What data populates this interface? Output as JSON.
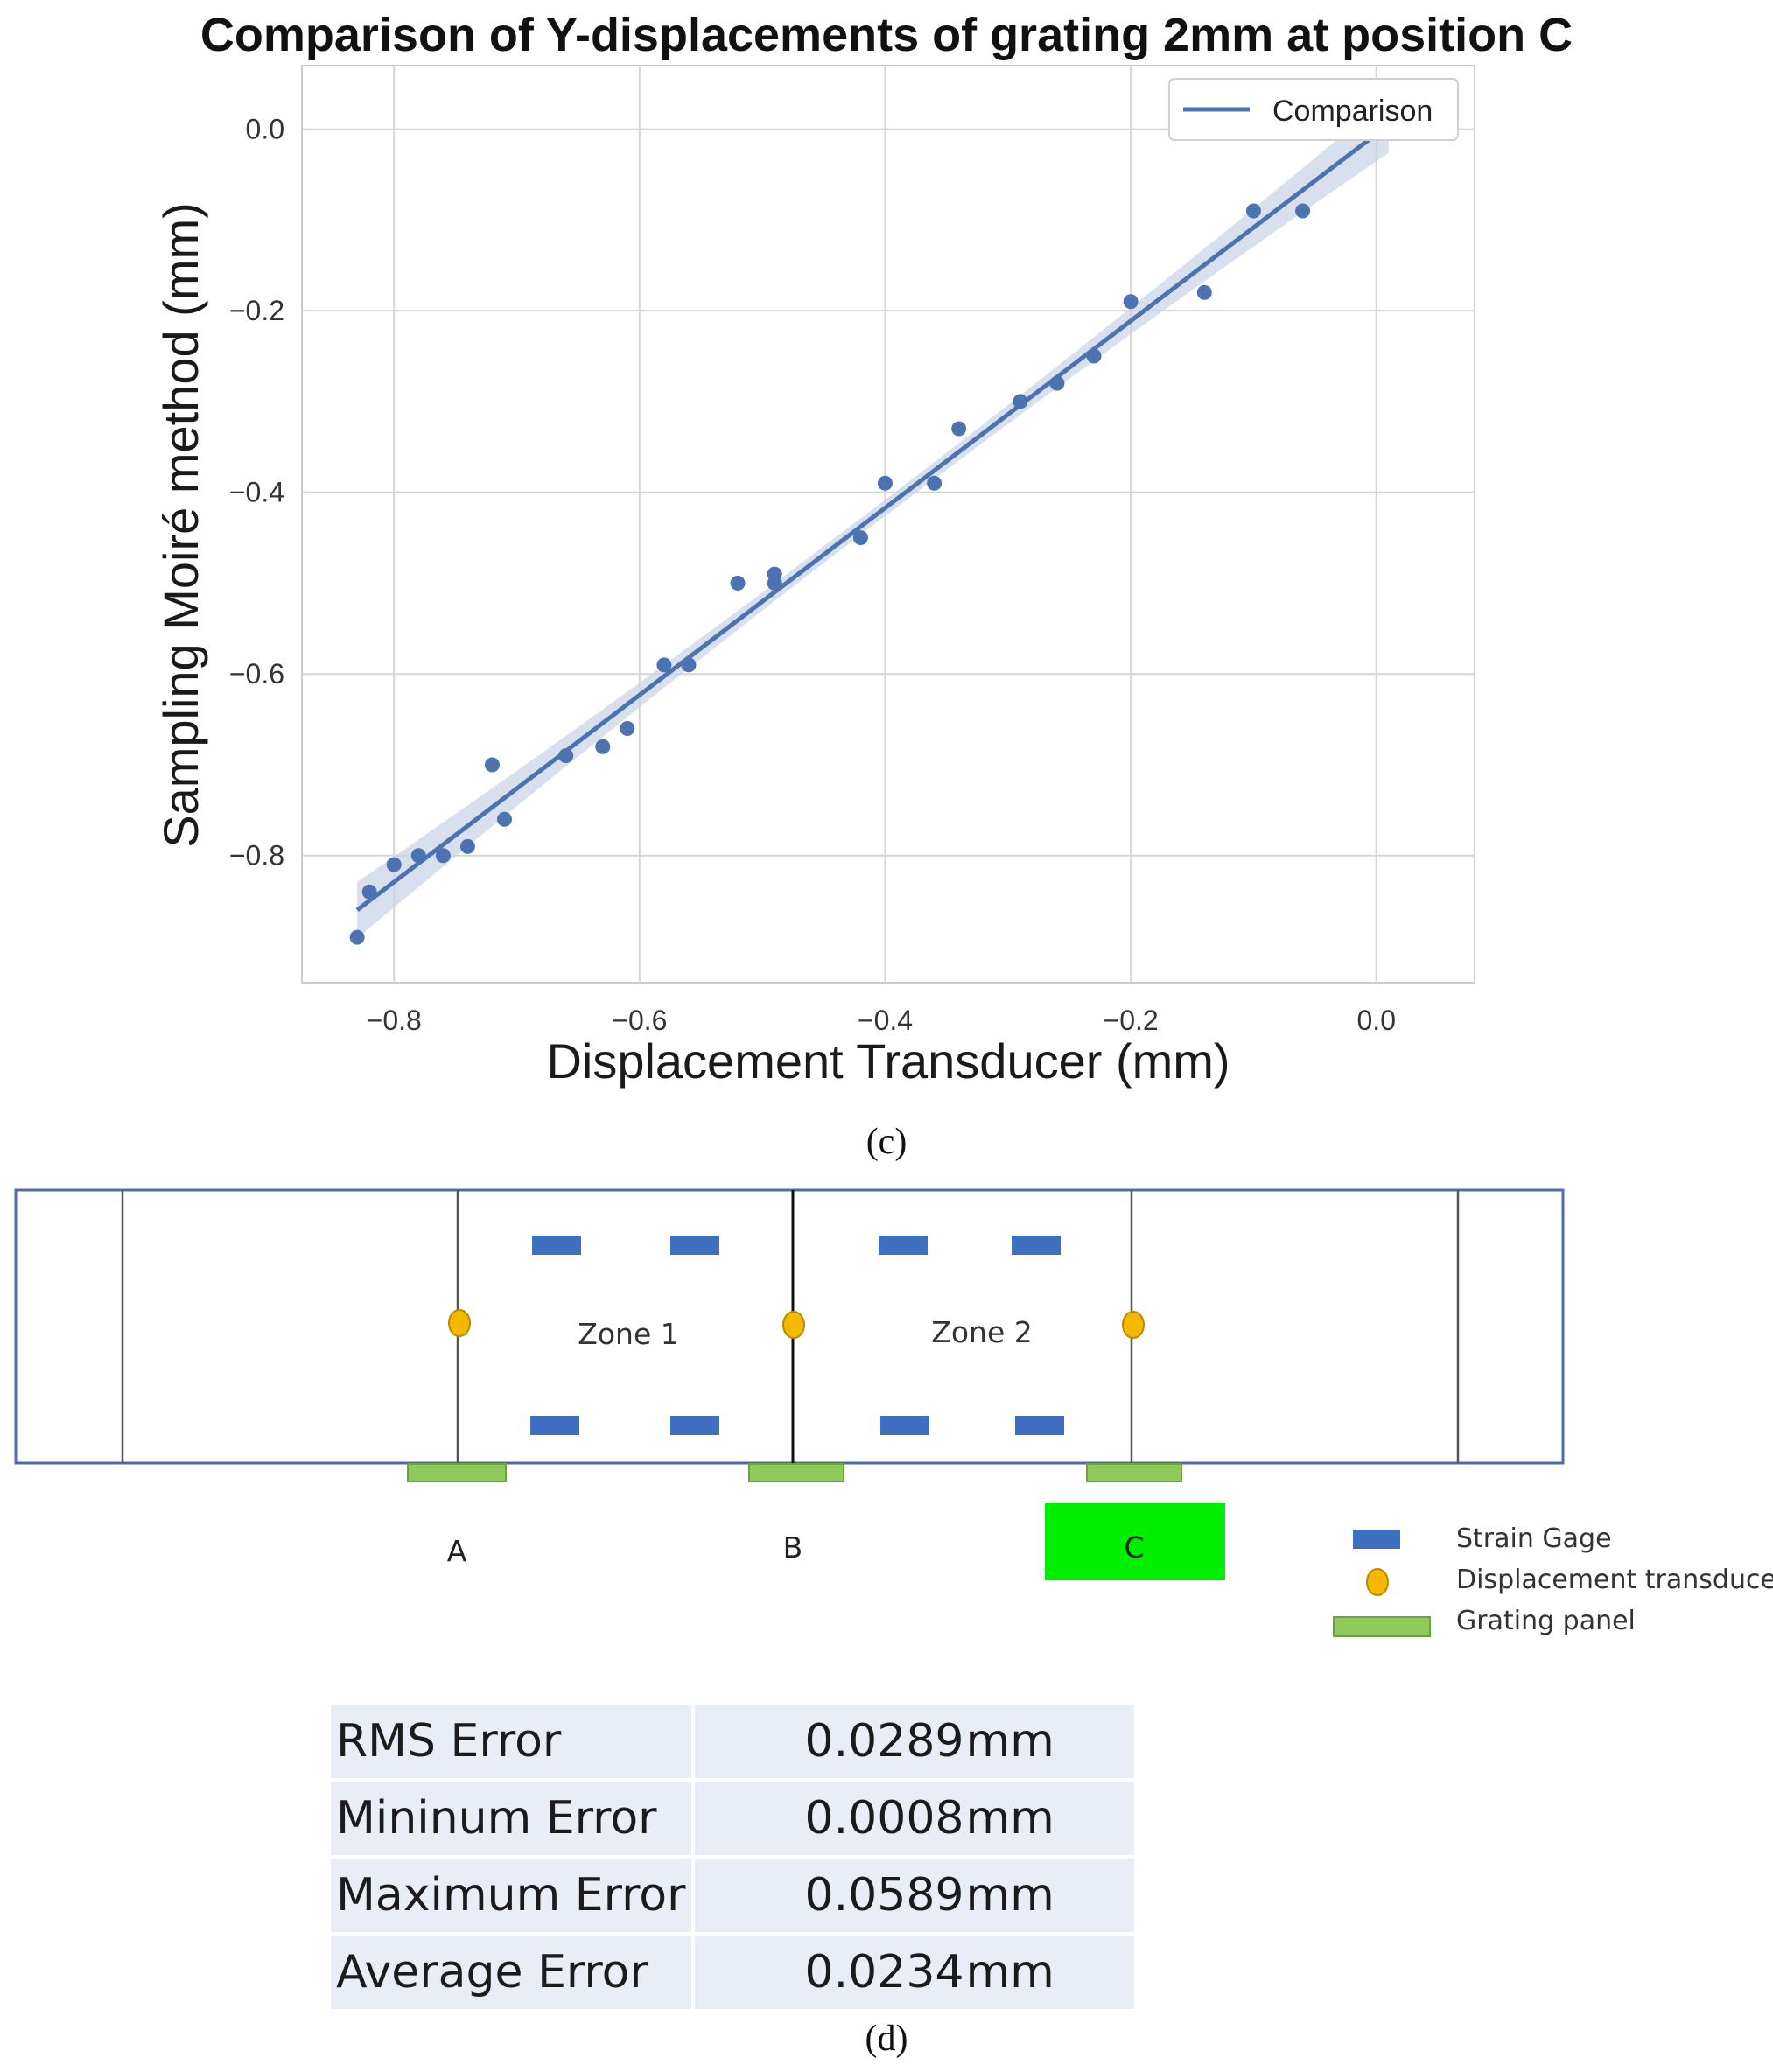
{
  "chart_data": {
    "type": "scatter",
    "title": "Comparison of Y-displacements of grating 2mm at position C",
    "xlabel": "Displacement Transducer (mm)",
    "ylabel": "Sampling Moiré method (mm)",
    "xlim": [
      -0.875,
      0.08
    ],
    "ylim": [
      -0.94,
      0.07
    ],
    "xticks": [
      -0.8,
      -0.6,
      -0.4,
      -0.2,
      0.0
    ],
    "yticks": [
      -0.8,
      -0.6,
      -0.4,
      -0.2,
      0.0
    ],
    "xtick_labels": [
      "−0.8",
      "−0.6",
      "−0.4",
      "−0.2",
      "0.0"
    ],
    "ytick_labels": [
      "−0.8",
      "−0.6",
      "−0.4",
      "−0.2",
      "0.0"
    ],
    "grid": true,
    "legend": {
      "placement": "top-right",
      "entries": [
        "Comparison"
      ]
    },
    "points": {
      "x": [
        -0.83,
        -0.82,
        -0.8,
        -0.78,
        -0.76,
        -0.74,
        -0.72,
        -0.71,
        -0.66,
        -0.63,
        -0.61,
        -0.58,
        -0.56,
        -0.52,
        -0.49,
        -0.49,
        -0.42,
        -0.4,
        -0.36,
        -0.34,
        -0.29,
        -0.26,
        -0.23,
        -0.2,
        -0.14,
        -0.1,
        -0.06
      ],
      "y": [
        -0.89,
        -0.84,
        -0.81,
        -0.8,
        -0.8,
        -0.79,
        -0.7,
        -0.76,
        -0.69,
        -0.68,
        -0.66,
        -0.59,
        -0.59,
        -0.5,
        -0.49,
        -0.5,
        -0.45,
        -0.39,
        -0.39,
        -0.33,
        -0.3,
        -0.28,
        -0.25,
        -0.19,
        -0.18,
        -0.09,
        -0.09
      ]
    },
    "fit_line": {
      "name": "Comparison",
      "x": [
        -0.83,
        0.01
      ],
      "y": [
        -0.86,
        0.005
      ]
    },
    "colors": {
      "series": "#4c72b0",
      "band": "#c9d3e6",
      "grid": "#d6d6d6"
    }
  },
  "captions": {
    "c": "(c)",
    "d": "(d)"
  },
  "diagram": {
    "zones": [
      "Zone 1",
      "Zone 2"
    ],
    "positions": [
      "A",
      "B",
      "C"
    ],
    "highlighted_position": "C",
    "legend": [
      "Strain Gage",
      "Displacement transducer",
      "Grating panel"
    ],
    "colors": {
      "strain_gage": "#3f6fc0",
      "transducer": "#f5b800",
      "grating_panel": "#8fcb5c",
      "highlight": "#00ee00",
      "outline": "#4f6ca8"
    }
  },
  "error_table": [
    {
      "label": "RMS Error",
      "value": "0.0289",
      "unit": "mm"
    },
    {
      "label": "Mininum Error",
      "value": "0.0008",
      "unit": "mm"
    },
    {
      "label": "Maximum Error",
      "value": "0.0589",
      "unit": "mm"
    },
    {
      "label": "Average Error",
      "value": "0.0234",
      "unit": "mm"
    }
  ]
}
